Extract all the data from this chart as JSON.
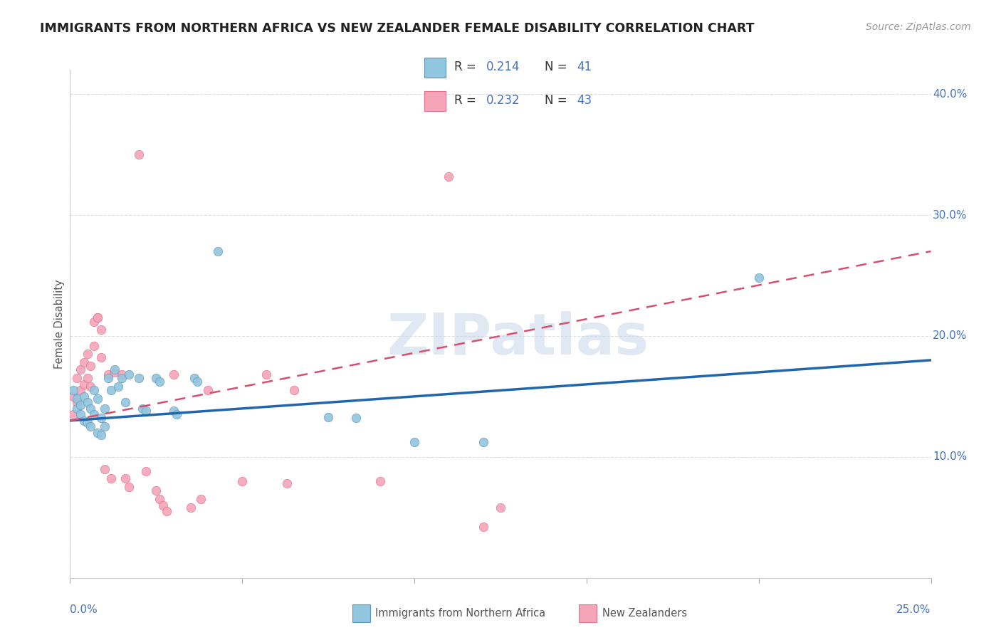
{
  "title": "IMMIGRANTS FROM NORTHERN AFRICA VS NEW ZEALANDER FEMALE DISABILITY CORRELATION CHART",
  "source": "Source: ZipAtlas.com",
  "ylabel": "Female Disability",
  "ylabel_right_ticks": [
    "10.0%",
    "20.0%",
    "30.0%",
    "40.0%"
  ],
  "ylabel_right_vals": [
    0.1,
    0.2,
    0.3,
    0.4
  ],
  "xlim": [
    0.0,
    0.25
  ],
  "ylim": [
    0.0,
    0.42
  ],
  "legend_r1": "0.214",
  "legend_n1": "41",
  "legend_r2": "0.232",
  "legend_n2": "43",
  "watermark": "ZIPatlas",
  "color_blue": "#92c5de",
  "color_blue_line": "#2166ac",
  "color_pink": "#f4a5b8",
  "color_pink_line": "#d6506e",
  "color_axis_text": "#4472c4",
  "blue_line_y0": 0.13,
  "blue_line_y1": 0.18,
  "pink_line_y0": 0.13,
  "pink_line_y1": 0.27,
  "scatter_blue": [
    [
      0.001,
      0.155
    ],
    [
      0.002,
      0.148
    ],
    [
      0.002,
      0.14
    ],
    [
      0.003,
      0.143
    ],
    [
      0.003,
      0.135
    ],
    [
      0.004,
      0.15
    ],
    [
      0.004,
      0.13
    ],
    [
      0.005,
      0.145
    ],
    [
      0.005,
      0.128
    ],
    [
      0.006,
      0.14
    ],
    [
      0.006,
      0.125
    ],
    [
      0.007,
      0.155
    ],
    [
      0.007,
      0.135
    ],
    [
      0.008,
      0.148
    ],
    [
      0.008,
      0.12
    ],
    [
      0.009,
      0.132
    ],
    [
      0.009,
      0.118
    ],
    [
      0.01,
      0.14
    ],
    [
      0.01,
      0.125
    ],
    [
      0.011,
      0.165
    ],
    [
      0.012,
      0.155
    ],
    [
      0.013,
      0.172
    ],
    [
      0.014,
      0.158
    ],
    [
      0.015,
      0.165
    ],
    [
      0.016,
      0.145
    ],
    [
      0.017,
      0.168
    ],
    [
      0.02,
      0.165
    ],
    [
      0.021,
      0.14
    ],
    [
      0.022,
      0.138
    ],
    [
      0.025,
      0.165
    ],
    [
      0.026,
      0.162
    ],
    [
      0.03,
      0.138
    ],
    [
      0.031,
      0.135
    ],
    [
      0.036,
      0.165
    ],
    [
      0.037,
      0.162
    ],
    [
      0.043,
      0.27
    ],
    [
      0.075,
      0.133
    ],
    [
      0.083,
      0.132
    ],
    [
      0.1,
      0.112
    ],
    [
      0.12,
      0.112
    ],
    [
      0.2,
      0.248
    ]
  ],
  "scatter_pink": [
    [
      0.001,
      0.15
    ],
    [
      0.001,
      0.135
    ],
    [
      0.002,
      0.165
    ],
    [
      0.002,
      0.145
    ],
    [
      0.003,
      0.172
    ],
    [
      0.003,
      0.155
    ],
    [
      0.004,
      0.178
    ],
    [
      0.004,
      0.16
    ],
    [
      0.005,
      0.185
    ],
    [
      0.005,
      0.165
    ],
    [
      0.006,
      0.175
    ],
    [
      0.006,
      0.158
    ],
    [
      0.007,
      0.212
    ],
    [
      0.007,
      0.192
    ],
    [
      0.008,
      0.215
    ],
    [
      0.008,
      0.215
    ],
    [
      0.009,
      0.205
    ],
    [
      0.009,
      0.182
    ],
    [
      0.01,
      0.09
    ],
    [
      0.011,
      0.168
    ],
    [
      0.012,
      0.082
    ],
    [
      0.013,
      0.17
    ],
    [
      0.015,
      0.168
    ],
    [
      0.016,
      0.082
    ],
    [
      0.017,
      0.075
    ],
    [
      0.02,
      0.35
    ],
    [
      0.022,
      0.088
    ],
    [
      0.025,
      0.072
    ],
    [
      0.026,
      0.065
    ],
    [
      0.027,
      0.06
    ],
    [
      0.028,
      0.055
    ],
    [
      0.03,
      0.168
    ],
    [
      0.035,
      0.058
    ],
    [
      0.038,
      0.065
    ],
    [
      0.04,
      0.155
    ],
    [
      0.05,
      0.08
    ],
    [
      0.057,
      0.168
    ],
    [
      0.063,
      0.078
    ],
    [
      0.065,
      0.155
    ],
    [
      0.09,
      0.08
    ],
    [
      0.11,
      0.332
    ],
    [
      0.12,
      0.042
    ],
    [
      0.125,
      0.058
    ]
  ]
}
